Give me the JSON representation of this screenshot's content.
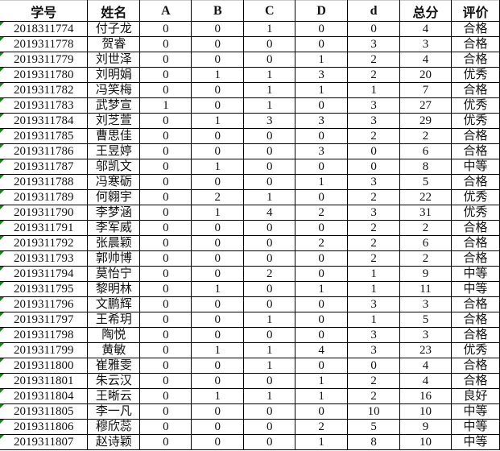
{
  "headers": [
    "学号",
    "姓名",
    "A",
    "B",
    "C",
    "D",
    "d",
    "总分",
    "评价"
  ],
  "rows": [
    [
      "2018311774",
      "付子龙",
      "0",
      "0",
      "1",
      "0",
      "0",
      "4",
      "合格"
    ],
    [
      "2019311778",
      "贺睿",
      "0",
      "0",
      "0",
      "0",
      "3",
      "3",
      "合格"
    ],
    [
      "2019311779",
      "刘世泽",
      "0",
      "0",
      "0",
      "1",
      "2",
      "4",
      "合格"
    ],
    [
      "2019311780",
      "刘明娟",
      "0",
      "1",
      "1",
      "3",
      "2",
      "20",
      "优秀"
    ],
    [
      "2019311782",
      "冯笑梅",
      "0",
      "0",
      "1",
      "1",
      "1",
      "7",
      "合格"
    ],
    [
      "2019311783",
      "武梦宣",
      "1",
      "0",
      "1",
      "0",
      "3",
      "27",
      "优秀"
    ],
    [
      "2019311784",
      "刘芝萱",
      "0",
      "1",
      "3",
      "3",
      "3",
      "29",
      "优秀"
    ],
    [
      "2019311785",
      "曹思佳",
      "0",
      "0",
      "0",
      "0",
      "2",
      "2",
      "合格"
    ],
    [
      "2019311786",
      "王昱婷",
      "0",
      "0",
      "0",
      "3",
      "0",
      "6",
      "合格"
    ],
    [
      "2019311787",
      "邬凯文",
      "0",
      "1",
      "0",
      "0",
      "0",
      "8",
      "中等"
    ],
    [
      "2019311788",
      "冯寒砺",
      "0",
      "0",
      "0",
      "1",
      "3",
      "5",
      "合格"
    ],
    [
      "2019311789",
      "何翱宇",
      "0",
      "2",
      "1",
      "0",
      "2",
      "22",
      "优秀"
    ],
    [
      "2019311790",
      "李梦涵",
      "0",
      "1",
      "4",
      "2",
      "3",
      "31",
      "优秀"
    ],
    [
      "2019311791",
      "李军威",
      "0",
      "0",
      "0",
      "0",
      "2",
      "2",
      "合格"
    ],
    [
      "2019311792",
      "张晨颖",
      "0",
      "0",
      "0",
      "2",
      "2",
      "6",
      "合格"
    ],
    [
      "2019311793",
      "郭帅博",
      "0",
      "0",
      "0",
      "0",
      "2",
      "2",
      "合格"
    ],
    [
      "2019311794",
      "莫怡宁",
      "0",
      "0",
      "2",
      "0",
      "1",
      "9",
      "中等"
    ],
    [
      "2019311795",
      "黎明林",
      "0",
      "1",
      "0",
      "1",
      "1",
      "11",
      "中等"
    ],
    [
      "2019311796",
      "文鹏辉",
      "0",
      "0",
      "0",
      "0",
      "3",
      "3",
      "合格"
    ],
    [
      "2019311797",
      "王希玥",
      "0",
      "0",
      "1",
      "0",
      "1",
      "5",
      "合格"
    ],
    [
      "2019311798",
      "陶悦",
      "0",
      "0",
      "0",
      "0",
      "3",
      "3",
      "合格"
    ],
    [
      "2019311799",
      "黄敏",
      "0",
      "1",
      "1",
      "4",
      "3",
      "23",
      "优秀"
    ],
    [
      "2019311800",
      "崔雅雯",
      "0",
      "0",
      "1",
      "0",
      "0",
      "4",
      "合格"
    ],
    [
      "2019311801",
      "朱云汉",
      "0",
      "0",
      "0",
      "1",
      "2",
      "4",
      "合格"
    ],
    [
      "2019311804",
      "王晰云",
      "0",
      "1",
      "1",
      "1",
      "2",
      "16",
      "良好"
    ],
    [
      "2019311805",
      "李一凡",
      "0",
      "0",
      "0",
      "0",
      "10",
      "10",
      "中等"
    ],
    [
      "2019311806",
      "穆欣蕊",
      "0",
      "0",
      "0",
      "2",
      "5",
      "9",
      "中等"
    ],
    [
      "2019311807",
      "赵诗颖",
      "0",
      "0",
      "0",
      "1",
      "8",
      "10",
      "中等"
    ]
  ]
}
